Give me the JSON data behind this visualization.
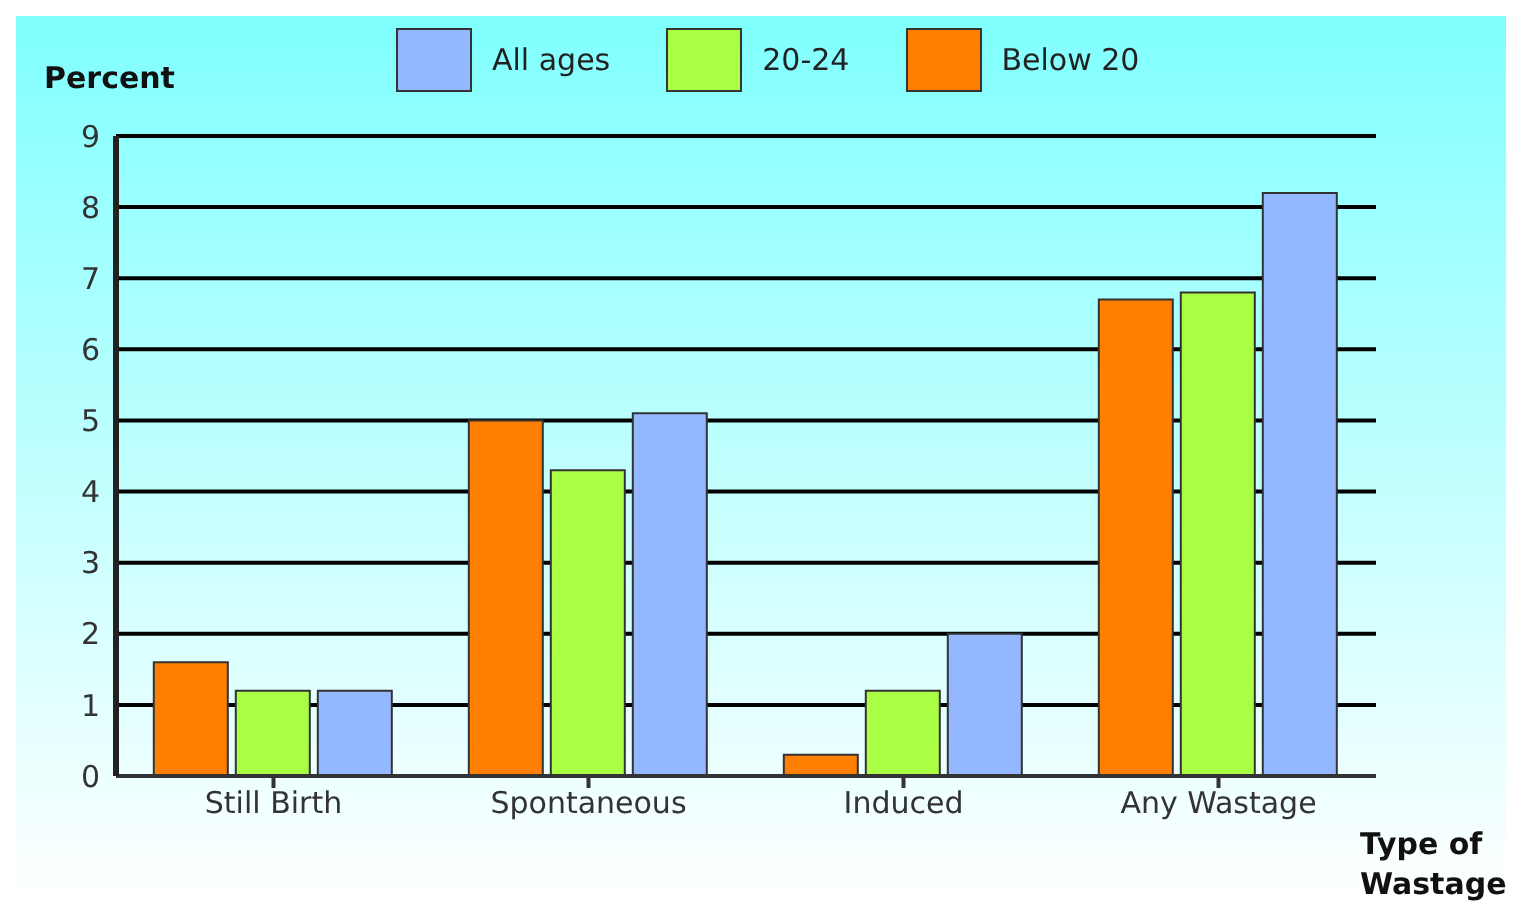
{
  "chart_data": {
    "type": "bar",
    "ylabel": "Percent",
    "xlabel": "Type of Wastage",
    "categories": [
      "Still Birth",
      "Spontaneous",
      "Induced",
      "Any Wastage"
    ],
    "series": [
      {
        "name": "Below 20",
        "color": "#ff7f00",
        "values": [
          1.6,
          5.0,
          0.3,
          6.7
        ]
      },
      {
        "name": "20-24",
        "color": "#aaff44",
        "values": [
          1.2,
          4.3,
          1.2,
          6.8
        ]
      },
      {
        "name": "All ages",
        "color": "#94b8ff",
        "values": [
          1.2,
          5.1,
          2.0,
          8.2
        ]
      }
    ],
    "ylim": [
      0,
      9
    ],
    "yticks": [
      0,
      1,
      2,
      3,
      4,
      5,
      6,
      7,
      8,
      9
    ],
    "grid": "y",
    "legend": "top"
  }
}
